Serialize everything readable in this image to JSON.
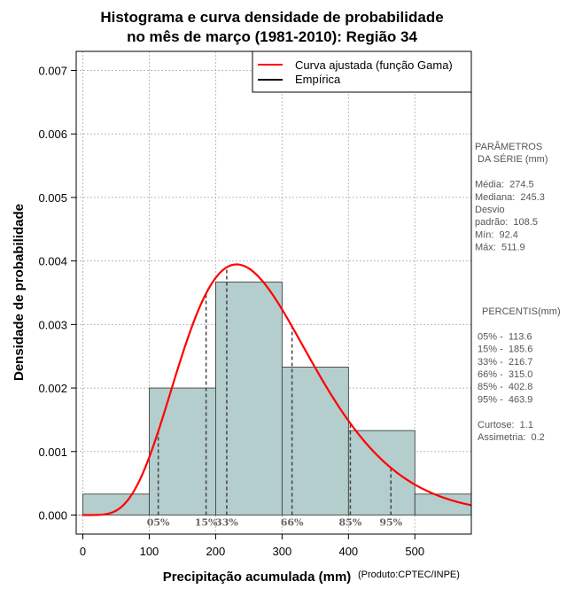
{
  "chart_data": {
    "type": "bar",
    "title_line1": "Histograma e curva densidade de probabilidade",
    "title_line2": "no mês de março (1981-2010): Região 34",
    "xlabel": "Precipitação acumulada (mm)",
    "ylabel": "Densidade de probabilidade",
    "credit": "(Produto:CPTEC/INPE)",
    "xlim": [
      -10,
      585
    ],
    "ylim": [
      -0.0003,
      0.0073
    ],
    "x_ticks": [
      0,
      100,
      200,
      300,
      400,
      500
    ],
    "x_tick_labels": [
      "0",
      "100",
      "200",
      "300",
      "400",
      "500"
    ],
    "y_ticks": [
      0,
      0.001,
      0.002,
      0.003,
      0.004,
      0.005,
      0.006,
      0.007
    ],
    "y_tick_labels": [
      "0.000",
      "0.001",
      "0.002",
      "0.003",
      "0.004",
      "0.005",
      "0.006",
      "0.007"
    ],
    "grid": true,
    "bins": [
      {
        "x0": 0,
        "x1": 100,
        "density": 0.00033
      },
      {
        "x0": 100,
        "x1": 200,
        "density": 0.002
      },
      {
        "x0": 200,
        "x1": 300,
        "density": 0.00367
      },
      {
        "x0": 300,
        "x1": 400,
        "density": 0.00233
      },
      {
        "x0": 400,
        "x1": 500,
        "density": 0.00133
      },
      {
        "x0": 500,
        "x1": 600,
        "density": 0.00033
      }
    ],
    "bar_color": "#b4cdcd",
    "curve_color": "#ff0000",
    "gamma_fit": {
      "shape": 6.41,
      "scale": 42.8
    },
    "legend": {
      "position": "top-right",
      "entries": [
        {
          "label": "Curva ajustada (função Gama)",
          "color": "#ff0000"
        },
        {
          "label": "Empírica",
          "color": "#000000"
        }
      ]
    },
    "percentile_lines": [
      {
        "label": "05%",
        "value": 113.6
      },
      {
        "label": "15%",
        "value": 185.6
      },
      {
        "label": "33%",
        "value": 216.7
      },
      {
        "label": "66%",
        "value": 315.0
      },
      {
        "label": "85%",
        "value": 402.8
      },
      {
        "label": "95%",
        "value": 463.9
      }
    ]
  },
  "side_panel": {
    "params_lines": [
      "PARÂMETROS",
      " DA SÉRIE (mm)",
      "",
      "Média:  274.5",
      "Mediana:  245.3",
      "Desvio",
      "padrão:  108.5",
      "Mín:  92.4",
      "Máx:  511.9"
    ],
    "percentis_lines": [
      "PERCENTIS(mm)",
      "",
      "05% -  113.6",
      "15% -  185.6",
      "33% -  216.7",
      "66% -  315.0",
      "85% -  402.8",
      "95% -  463.9",
      "",
      "Curtose:  1.1",
      "Assimetria:  0.2"
    ]
  }
}
